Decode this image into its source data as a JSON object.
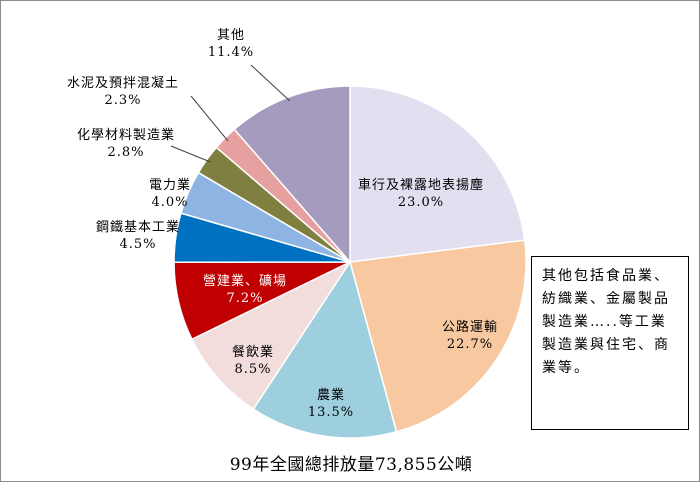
{
  "chart_data": {
    "type": "pie",
    "title": "99年全國總排放量73,855公噸",
    "start_angle_deg": 0,
    "direction": "clockwise",
    "slices": [
      {
        "name": "車行及裸露地表揚塵",
        "value": 23.0,
        "label": "23.0%",
        "color": "#e4dff0"
      },
      {
        "name": "公路運輸",
        "value": 22.7,
        "label": "22.7%",
        "color": "#f8c8a0"
      },
      {
        "name": "農業",
        "value": 13.5,
        "label": "13.5%",
        "color": "#9ecfdf"
      },
      {
        "name": "餐飲業",
        "value": 8.5,
        "label": "8.5%",
        "color": "#f2dcdc"
      },
      {
        "name": "營建業、礦場",
        "value": 7.2,
        "label": "7.2%",
        "color": "#c00000"
      },
      {
        "name": "鋼鐵基本工業",
        "value": 4.5,
        "label": "4.5%",
        "color": "#0070c0"
      },
      {
        "name": "電力業",
        "value": 4.0,
        "label": "4.0%",
        "color": "#8eb4e3"
      },
      {
        "name": "化學材料製造業",
        "value": 2.8,
        "label": "2.8%",
        "color": "#7f7f3f"
      },
      {
        "name": "水泥及預拌混凝土",
        "value": 2.3,
        "label": "2.3%",
        "color": "#e6a0a0"
      },
      {
        "name": "其他",
        "value": 11.4,
        "label": "11.4%",
        "color": "#a49bbf"
      }
    ]
  },
  "note": "其他包括食品業、紡織業、金屬製品製造業…..等工業製造業與住宅、商業等。"
}
